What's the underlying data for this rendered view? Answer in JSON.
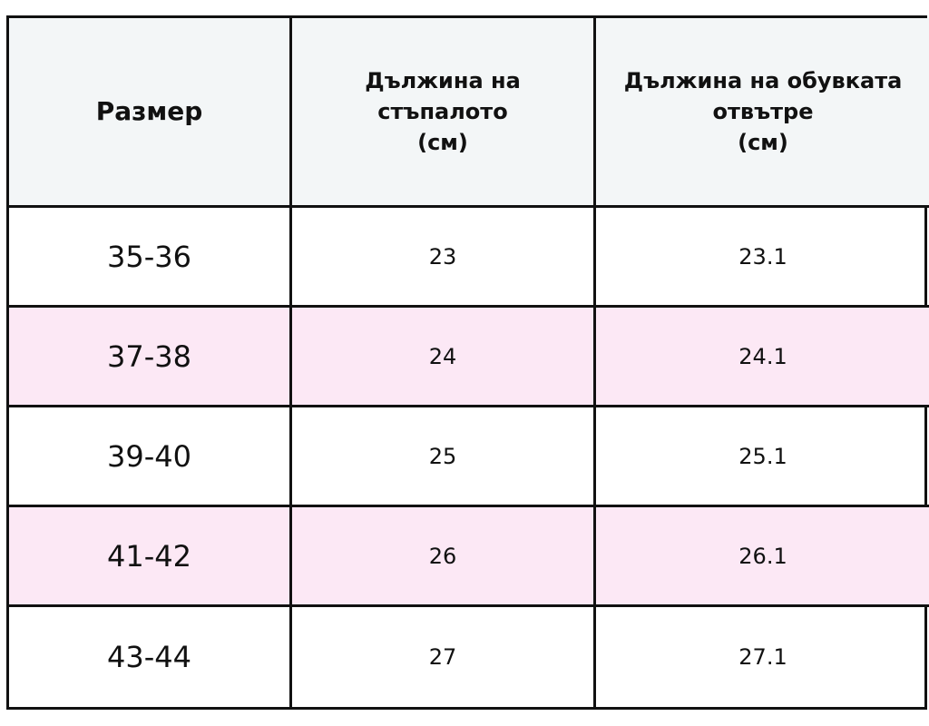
{
  "table": {
    "header": [
      "Размер",
      "Дължина на\nстъпалото\n(см)",
      "Дължина на обувката\nотвътре\n(см)"
    ],
    "rows": [
      [
        "35-36",
        23,
        23.1
      ],
      [
        "37-38",
        24,
        24.1
      ],
      [
        "39-40",
        25,
        25.1
      ],
      [
        "41-42",
        26,
        26.1
      ],
      [
        "43-44",
        27,
        27.1
      ]
    ]
  }
}
